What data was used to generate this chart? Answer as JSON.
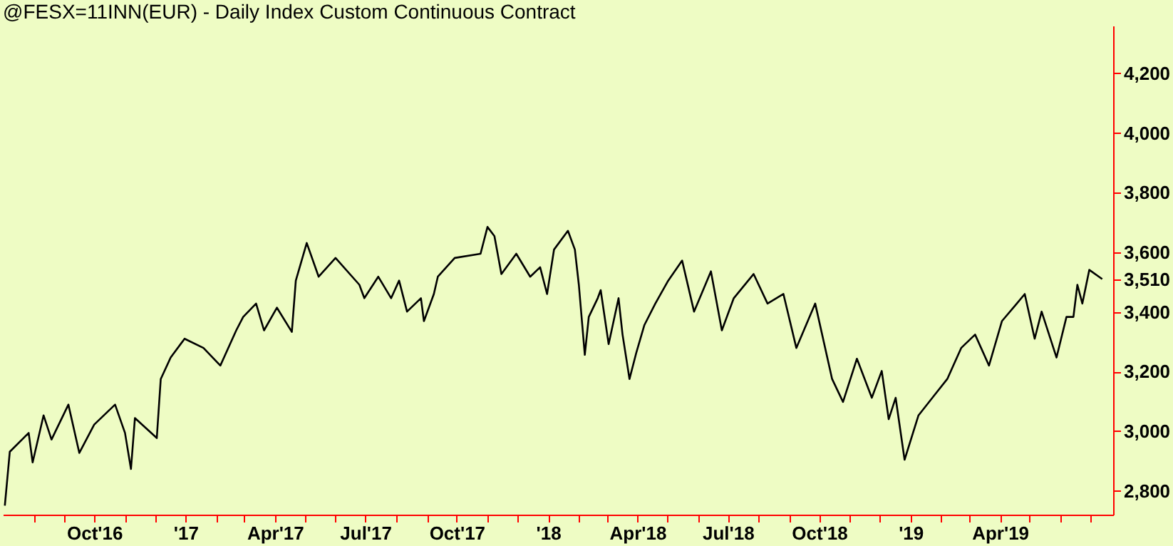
{
  "chart_data": {
    "type": "line",
    "title": "@FESX=11INN(EUR) - Daily Index Custom Continuous Contract",
    "x": [
      "2016-07-03",
      "2016-07-08",
      "2016-07-27",
      "2016-07-31",
      "2016-08-11",
      "2016-08-19",
      "2016-09-05",
      "2016-09-16",
      "2016-10-01",
      "2016-10-22",
      "2016-11-01",
      "2016-11-07",
      "2016-11-11",
      "2016-12-03",
      "2016-12-07",
      "2016-12-17",
      "2016-12-31",
      "2017-01-19",
      "2017-02-05",
      "2017-02-21",
      "2017-02-28",
      "2017-03-13",
      "2017-03-21",
      "2017-04-03",
      "2017-04-18",
      "2017-04-22",
      "2017-05-03",
      "2017-05-15",
      "2017-06-01",
      "2017-06-25",
      "2017-06-30",
      "2017-07-14",
      "2017-07-27",
      "2017-08-04",
      "2017-08-12",
      "2017-08-26",
      "2017-08-29",
      "2017-09-08",
      "2017-09-12",
      "2017-09-29",
      "2017-10-25",
      "2017-11-01",
      "2017-11-08",
      "2017-11-15",
      "2017-11-30",
      "2017-12-14",
      "2017-12-24",
      "2017-12-31",
      "2018-01-07",
      "2018-01-21",
      "2018-01-28",
      "2018-02-01",
      "2018-02-07",
      "2018-02-11",
      "2018-02-20",
      "2018-02-23",
      "2018-03-03",
      "2018-03-13",
      "2018-03-17",
      "2018-03-24",
      "2018-03-31",
      "2018-04-08",
      "2018-04-19",
      "2018-05-02",
      "2018-05-16",
      "2018-05-28",
      "2018-06-14",
      "2018-06-25",
      "2018-07-07",
      "2018-07-27",
      "2018-08-10",
      "2018-08-26",
      "2018-09-08",
      "2018-09-27",
      "2018-10-14",
      "2018-10-25",
      "2018-11-08",
      "2018-11-23",
      "2018-12-03",
      "2018-12-10",
      "2018-12-17",
      "2018-12-26",
      "2019-01-09",
      "2019-01-23",
      "2019-02-07",
      "2019-02-21",
      "2019-03-07",
      "2019-03-21",
      "2019-04-03",
      "2019-04-18",
      "2019-04-26",
      "2019-05-06",
      "2019-05-13",
      "2019-05-28",
      "2019-06-07",
      "2019-06-14",
      "2019-06-18",
      "2019-06-23",
      "2019-06-30",
      "2019-07-13"
    ],
    "series": [
      {
        "color": "#000000",
        "values": [
          2750,
          2931,
          2994,
          2895,
          3053,
          2972,
          3089,
          2927,
          3022,
          3089,
          2994,
          2873,
          3044,
          2977,
          3175,
          3247,
          3310,
          3279,
          3220,
          3338,
          3383,
          3428,
          3338,
          3414,
          3333,
          3505,
          3631,
          3518,
          3581,
          3491,
          3446,
          3518,
          3446,
          3505,
          3401,
          3446,
          3369,
          3460,
          3518,
          3581,
          3595,
          3685,
          3654,
          3527,
          3595,
          3518,
          3550,
          3460,
          3609,
          3672,
          3609,
          3491,
          3256,
          3383,
          3446,
          3473,
          3292,
          3446,
          3324,
          3175,
          3265,
          3356,
          3428,
          3505,
          3572,
          3401,
          3536,
          3338,
          3446,
          3527,
          3428,
          3460,
          3279,
          3428,
          3175,
          3098,
          3243,
          3112,
          3202,
          3040,
          3112,
          2904,
          3053,
          3112,
          3175,
          3279,
          3324,
          3220,
          3369,
          3428,
          3460,
          3310,
          3401,
          3247,
          3383,
          3383,
          3491,
          3428,
          3541,
          3510
        ]
      }
    ],
    "xlim": [
      "2016-07-01",
      "2019-07-24"
    ],
    "xticks": [
      {
        "value": "2016-08-01",
        "label": null
      },
      {
        "value": "2016-09-01",
        "label": null
      },
      {
        "value": "2016-10-01",
        "label": "Oct'16"
      },
      {
        "value": "2016-11-01",
        "label": null
      },
      {
        "value": "2016-12-01",
        "label": null
      },
      {
        "value": "2017-01-01",
        "label": "'17"
      },
      {
        "value": "2017-02-01",
        "label": null
      },
      {
        "value": "2017-03-01",
        "label": null
      },
      {
        "value": "2017-04-01",
        "label": "Apr'17"
      },
      {
        "value": "2017-05-01",
        "label": null
      },
      {
        "value": "2017-06-01",
        "label": null
      },
      {
        "value": "2017-07-01",
        "label": "Jul'17"
      },
      {
        "value": "2017-08-01",
        "label": null
      },
      {
        "value": "2017-09-01",
        "label": null
      },
      {
        "value": "2017-10-01",
        "label": "Oct'17"
      },
      {
        "value": "2017-11-01",
        "label": null
      },
      {
        "value": "2017-12-01",
        "label": null
      },
      {
        "value": "2018-01-01",
        "label": "'18"
      },
      {
        "value": "2018-02-01",
        "label": null
      },
      {
        "value": "2018-03-01",
        "label": null
      },
      {
        "value": "2018-04-01",
        "label": "Apr'18"
      },
      {
        "value": "2018-05-01",
        "label": null
      },
      {
        "value": "2018-06-01",
        "label": null
      },
      {
        "value": "2018-07-01",
        "label": "Jul'18"
      },
      {
        "value": "2018-08-01",
        "label": null
      },
      {
        "value": "2018-09-01",
        "label": null
      },
      {
        "value": "2018-10-01",
        "label": "Oct'18"
      },
      {
        "value": "2018-11-01",
        "label": null
      },
      {
        "value": "2018-12-01",
        "label": null
      },
      {
        "value": "2019-01-01",
        "label": "'19"
      },
      {
        "value": "2019-02-01",
        "label": null
      },
      {
        "value": "2019-03-01",
        "label": null
      },
      {
        "value": "2019-04-01",
        "label": "Apr'19"
      },
      {
        "value": "2019-05-01",
        "label": null
      },
      {
        "value": "2019-06-01",
        "label": null
      },
      {
        "value": "2019-07-01",
        "label": null
      }
    ],
    "ylim": [
      2720,
      4360
    ],
    "yticks": [
      {
        "value": 2800,
        "label": "2,800"
      },
      {
        "value": 3000,
        "label": "3,000"
      },
      {
        "value": 3200,
        "label": "3,200"
      },
      {
        "value": 3400,
        "label": "3,400"
      },
      {
        "value": 3510,
        "label": "3,510"
      },
      {
        "value": 3600,
        "label": "3,600"
      },
      {
        "value": 3800,
        "label": "3,800"
      },
      {
        "value": 4000,
        "label": "4,000"
      },
      {
        "value": 4200,
        "label": "4,200"
      }
    ],
    "grid": false,
    "marker": "none",
    "line_style": "solid"
  }
}
